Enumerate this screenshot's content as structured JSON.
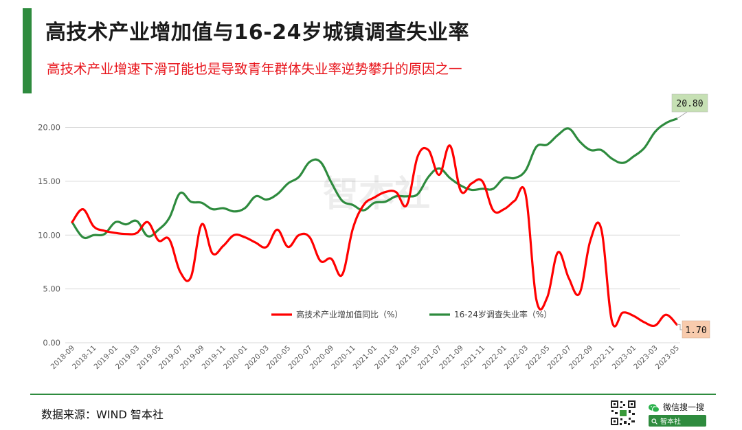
{
  "header": {
    "title": "高技术产业增加值与16-24岁城镇调查失业率",
    "subtitle": "高技术产业增速下滑可能也是导致青年群体失业率逆势攀升的原因之一"
  },
  "colors": {
    "accent_green": "#2e8b3e",
    "hightech_red": "#ff0000",
    "unemployment_green": "#2e8b3e",
    "subtitle_red": "#e8141b",
    "grid": "#d9d9d9",
    "axis_text": "#595959",
    "label_green_fill": "#c6e0b4",
    "label_orange_fill": "#f8cbad"
  },
  "chart_data": {
    "type": "line",
    "ylim": [
      0,
      20
    ],
    "yticks": [
      "0.00",
      "5.00",
      "10.00",
      "15.00",
      "20.00"
    ],
    "x": [
      "2018-09",
      "2018-10",
      "2018-11",
      "2018-12",
      "2019-01",
      "2019-02",
      "2019-03",
      "2019-04",
      "2019-05",
      "2019-06",
      "2019-07",
      "2019-08",
      "2019-09",
      "2019-10",
      "2019-11",
      "2019-12",
      "2020-01",
      "2020-02",
      "2020-03",
      "2020-04",
      "2020-05",
      "2020-06",
      "2020-07",
      "2020-08",
      "2020-09",
      "2020-10",
      "2020-11",
      "2020-12",
      "2021-01",
      "2021-02",
      "2021-03",
      "2021-04",
      "2021-05",
      "2021-06",
      "2021-07",
      "2021-08",
      "2021-09",
      "2021-10",
      "2021-11",
      "2021-12",
      "2022-01",
      "2022-02",
      "2022-03",
      "2022-04",
      "2022-05",
      "2022-06",
      "2022-07",
      "2022-08",
      "2022-09",
      "2022-10",
      "2022-11",
      "2022-12",
      "2023-01",
      "2023-02",
      "2023-03",
      "2023-04",
      "2023-05"
    ],
    "xtick_labels": [
      "2018-09",
      "2018-11",
      "2019-01",
      "2019-03",
      "2019-05",
      "2019-07",
      "2019-09",
      "2019-11",
      "2020-01",
      "2020-03",
      "2020-05",
      "2020-07",
      "2020-09",
      "2020-11",
      "2021-01",
      "2021-03",
      "2021-05",
      "2021-07",
      "2021-09",
      "2021-11",
      "2022-01",
      "2022-03",
      "2022-05",
      "2022-07",
      "2022-09",
      "2022-11",
      "2023-01",
      "2023-03",
      "2023-05"
    ],
    "series": [
      {
        "name": "高技术产业增加值同比（%）",
        "color": "#ff0000",
        "values": [
          11.2,
          12.4,
          10.8,
          10.4,
          10.2,
          10.1,
          10.2,
          11.2,
          9.5,
          9.6,
          6.6,
          6.1,
          11.0,
          8.3,
          9.0,
          10.0,
          9.8,
          9.3,
          8.9,
          10.5,
          8.9,
          10.0,
          9.8,
          7.6,
          7.8,
          6.3,
          10.6,
          12.8,
          13.5,
          14.0,
          14.0,
          12.8,
          17.3,
          17.9,
          15.6,
          18.3,
          14.1,
          14.8,
          15.0,
          12.3,
          12.4,
          13.2,
          13.8,
          4.0,
          4.2,
          8.4,
          6.0,
          4.6,
          9.5,
          10.6,
          2.0,
          2.8,
          2.5,
          1.9,
          1.6,
          2.6,
          1.7
        ]
      },
      {
        "name": "16-24岁调查失业率（%）",
        "color": "#2e8b3e",
        "values": [
          11.2,
          9.8,
          10.0,
          10.1,
          11.2,
          11.0,
          11.3,
          9.9,
          10.5,
          11.6,
          13.9,
          13.1,
          13.0,
          12.4,
          12.5,
          12.2,
          12.5,
          13.6,
          13.3,
          13.8,
          14.8,
          15.4,
          16.8,
          16.8,
          14.9,
          13.2,
          12.8,
          12.3,
          13.0,
          13.1,
          13.6,
          13.6,
          13.8,
          15.4,
          16.2,
          15.3,
          14.6,
          14.2,
          14.3,
          14.3,
          15.3,
          15.3,
          16.0,
          18.2,
          18.4,
          19.3,
          19.9,
          18.7,
          17.9,
          17.9,
          17.1,
          16.7,
          17.3,
          18.1,
          19.6,
          20.4,
          20.8
        ]
      }
    ],
    "end_labels": {
      "unemployment": "20.80",
      "hightech": "1.70"
    },
    "legend_position": "bottom-right",
    "grid": true
  },
  "footer": {
    "source": "数据来源：WIND  智本社",
    "wechat_search": "微信搜一搜",
    "brand": "智本社"
  },
  "watermark": "智本社"
}
